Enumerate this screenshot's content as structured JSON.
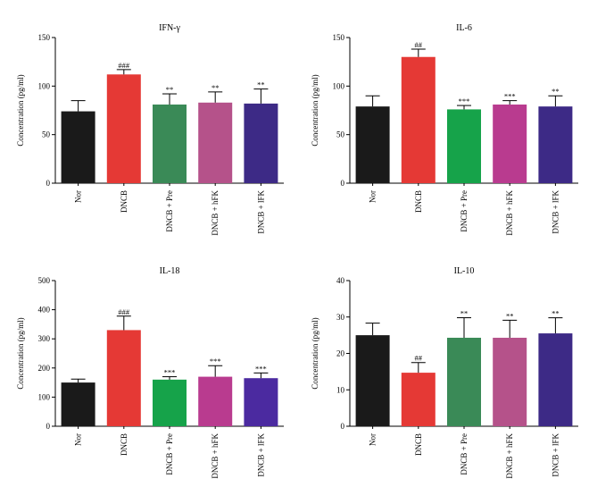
{
  "chart_data": [
    {
      "type": "bar",
      "title": "IFN-γ",
      "ylabel": "Concentration (pg/ml)",
      "xlabel": "",
      "ylim": [
        0,
        150
      ],
      "yticks": [
        0,
        50,
        100,
        150
      ],
      "categories": [
        "Nor",
        "DNCB",
        "DNCB + Pre",
        "DNCB + hFK",
        "DNCB + lFK"
      ],
      "values": [
        74,
        112,
        81,
        83,
        82
      ],
      "errors": [
        11,
        5,
        11,
        11,
        15
      ],
      "significance": [
        "",
        "###",
        "**",
        "**",
        "**"
      ],
      "colors": [
        "#1a1a1a",
        "#e53935",
        "#3a8a57",
        "#b5528a",
        "#3d2a86"
      ]
    },
    {
      "type": "bar",
      "title": "IL-6",
      "ylabel": "Concentration (pg/ml)",
      "xlabel": "",
      "ylim": [
        0,
        150
      ],
      "yticks": [
        0,
        50,
        100,
        150
      ],
      "categories": [
        "Nor",
        "DNCB",
        "DNCB + Pre",
        "DNCB + hFK",
        "DNCB + lFK"
      ],
      "values": [
        79,
        130,
        76,
        81,
        79
      ],
      "errors": [
        11,
        8,
        4,
        4,
        11
      ],
      "significance": [
        "",
        "##",
        "***",
        "***",
        "**"
      ],
      "colors": [
        "#1a1a1a",
        "#e53935",
        "#16a34a",
        "#b93b8f",
        "#3d2a86"
      ]
    },
    {
      "type": "bar",
      "title": "IL-18",
      "ylabel": "Concentration (pg/ml)",
      "xlabel": "",
      "ylim": [
        0,
        500
      ],
      "yticks": [
        0,
        100,
        200,
        300,
        400,
        500
      ],
      "categories": [
        "Nor",
        "DNCB",
        "DNCB + Pre",
        "DNCB + hFK",
        "DNCB + lFK"
      ],
      "values": [
        150,
        330,
        160,
        170,
        165
      ],
      "errors": [
        12,
        48,
        10,
        38,
        18
      ],
      "significance": [
        "",
        "###",
        "***",
        "***",
        "***"
      ],
      "colors": [
        "#1a1a1a",
        "#e53935",
        "#16a34a",
        "#b93b8f",
        "#4b2aa0"
      ]
    },
    {
      "type": "bar",
      "title": "IL-10",
      "ylabel": "Concentration (pg/ml)",
      "xlabel": "",
      "ylim": [
        0,
        40
      ],
      "yticks": [
        0,
        10,
        20,
        30,
        40
      ],
      "categories": [
        "Nor",
        "DNCB",
        "DNCB + Pre",
        "DNCB + hFK",
        "DNCB + lFK"
      ],
      "values": [
        25,
        14.7,
        24.3,
        24.3,
        25.5
      ],
      "errors": [
        3.3,
        2.8,
        5.5,
        4.8,
        4.3
      ],
      "significance": [
        "",
        "##",
        "**",
        "**",
        "**"
      ],
      "colors": [
        "#1a1a1a",
        "#e53935",
        "#3a8a57",
        "#b5528a",
        "#3d2a86"
      ]
    }
  ]
}
